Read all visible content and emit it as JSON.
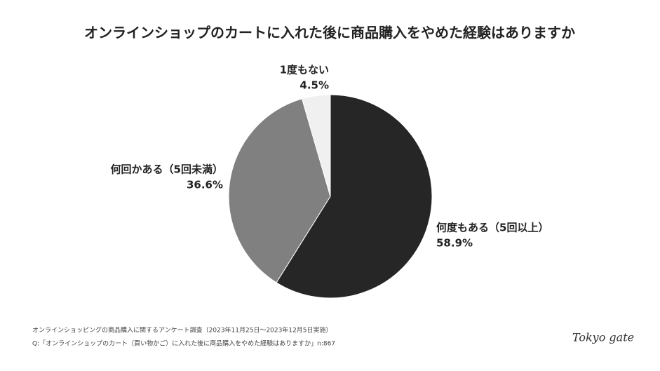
{
  "chart_data": {
    "type": "pie",
    "title": "オンラインショップのカートに入れた後に商品購入をやめた経験はありますか",
    "categories": [
      "何度もある（5回以上）",
      "何回かある（5回未満）",
      "1度もない"
    ],
    "values": [
      58.9,
      36.6,
      4.5
    ],
    "value_labels": [
      "58.9%",
      "36.6%",
      "4.5%"
    ],
    "colors": [
      "#262626",
      "#808080",
      "#f0f0f0"
    ]
  },
  "footer": {
    "source": "オンラインショッピングの商品購入に関するアンケート調査（2023年11月25日〜2023年12月5日実施）",
    "question": "Q:「オンラインショップのカート（買い物かご）に入れた後に商品購入をやめた経験はありますか」n:867",
    "logo": "Tokyo gate"
  }
}
